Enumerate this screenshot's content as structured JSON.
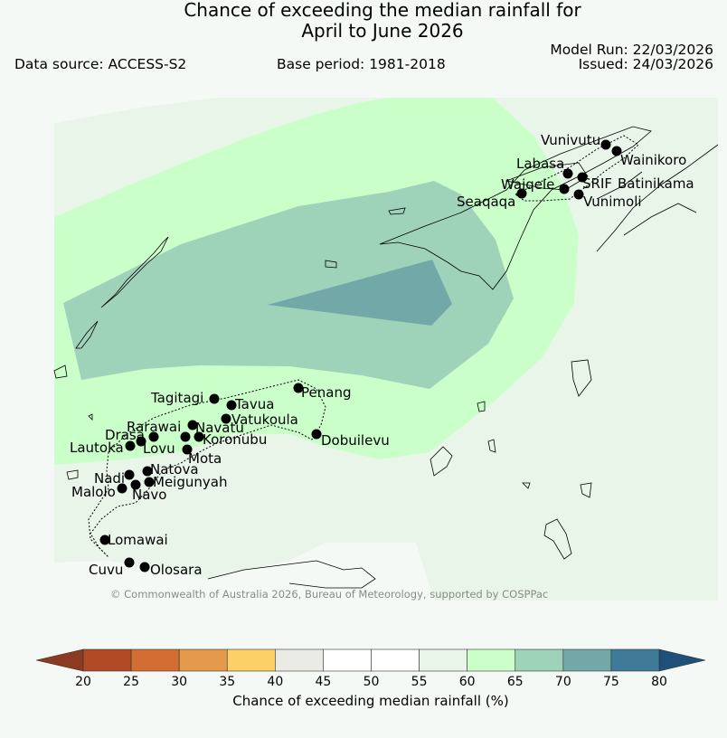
{
  "title": {
    "line1": "Chance of exceeding the median rainfall for",
    "line2": "April to June 2026"
  },
  "header": {
    "data_source": "Data source: ACCESS-S2",
    "base_period": "Base period: 1981-2018",
    "model_run": "Model Run: 22/03/2026",
    "issued": "Issued: 24/03/2026"
  },
  "copyright": "© Commonwealth of Australia 2026, Bureau of Meteorology, supported by COSPPac",
  "stations": [
    {
      "name": "Vunivutu"
    },
    {
      "name": "Wainikoro"
    },
    {
      "name": "Labasa"
    },
    {
      "name": "Waiqele"
    },
    {
      "name": "SRIF"
    },
    {
      "name": "Batinikama"
    },
    {
      "name": "Seaqaqa"
    },
    {
      "name": "Vunimoli"
    },
    {
      "name": "Tagitagi"
    },
    {
      "name": "Tavua"
    },
    {
      "name": "Penang"
    },
    {
      "name": "Vatukoula"
    },
    {
      "name": "Rarawai"
    },
    {
      "name": "Navatu"
    },
    {
      "name": "Drasa"
    },
    {
      "name": "Koronubu"
    },
    {
      "name": "Dobuilevu"
    },
    {
      "name": "Lautoka"
    },
    {
      "name": "Lovu"
    },
    {
      "name": "Mota"
    },
    {
      "name": "Natova"
    },
    {
      "name": "Nadi"
    },
    {
      "name": "Meigunyah"
    },
    {
      "name": "Malolo"
    },
    {
      "name": "Navo"
    },
    {
      "name": "Lomawai"
    },
    {
      "name": "Cuvu"
    },
    {
      "name": "Olosara"
    }
  ],
  "colorbar": {
    "title": "Chance of exceeding median rainfall (%)",
    "ticks": [
      "20",
      "25",
      "30",
      "35",
      "40",
      "45",
      "50",
      "55",
      "60",
      "65",
      "70",
      "75",
      "80"
    ],
    "colors": [
      "#b34a26",
      "#d36d33",
      "#e4994b",
      "#fdd067",
      "#ebebe6",
      "#ffffff",
      "#ffffff",
      "#eaf5ea",
      "#caffca",
      "#9ed2b9",
      "#73a8a8",
      "#3f7a99"
    ],
    "under_color": "#8c3a22",
    "over_color": "#1f5078"
  },
  "legend_map_colors": {
    "band_55_60": "#eaf5ea",
    "band_60_65": "#caffca",
    "band_65_70": "#9ed2b9",
    "band_70_75": "#73a8a8"
  }
}
